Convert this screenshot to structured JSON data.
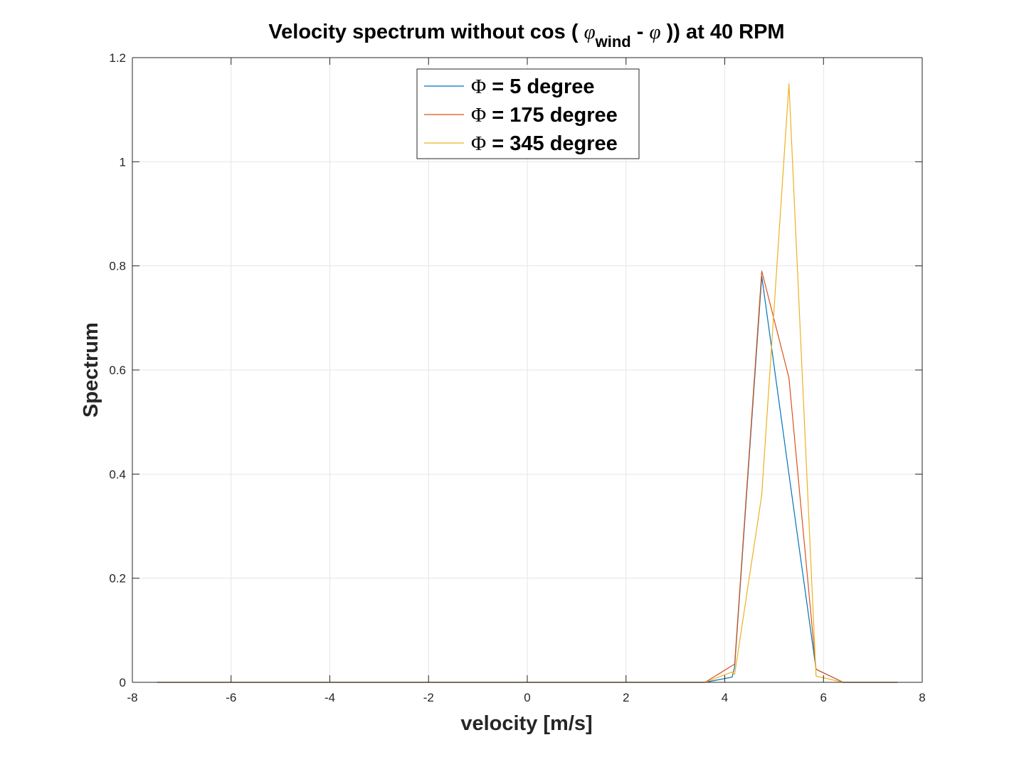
{
  "chart_data": {
    "type": "line",
    "title": {
      "prefix": "Velocity spectrum without cos ( ",
      "phi_symbol": "φ",
      "subscript": "wind",
      "middle": " - ",
      "suffix": " )) at 40 RPM"
    },
    "xlabel": "velocity [m/s]",
    "ylabel": "Spectrum",
    "xlim": [
      -8,
      8
    ],
    "ylim": [
      0,
      1.2
    ],
    "xticks": [
      -8,
      -6,
      -4,
      -2,
      0,
      2,
      4,
      6,
      8
    ],
    "yticks": [
      0,
      0.2,
      0.4,
      0.6,
      0.8,
      1,
      1.2
    ],
    "ytick_labels": [
      "0",
      "0.2",
      "0.4",
      "0.6",
      "0.8",
      "1",
      "1.2"
    ],
    "grid": true,
    "legend_position": "top-center",
    "legend_symbol": "Φ",
    "series": [
      {
        "name": "= 5 degree",
        "color": "#0072BD",
        "points": [
          [
            -7.5,
            0
          ],
          [
            3.6,
            0
          ],
          [
            4.15,
            0.01
          ],
          [
            4.2,
            0.03
          ],
          [
            4.75,
            0.78
          ],
          [
            5.3,
            0.4
          ],
          [
            5.85,
            0.025
          ],
          [
            6.4,
            0
          ],
          [
            7.5,
            0
          ]
        ]
      },
      {
        "name": "= 175 degree",
        "color": "#D95319",
        "points": [
          [
            -7.5,
            0
          ],
          [
            3.6,
            0
          ],
          [
            4.2,
            0.035
          ],
          [
            4.75,
            0.79
          ],
          [
            5.3,
            0.585
          ],
          [
            5.85,
            0.025
          ],
          [
            6.4,
            0
          ],
          [
            7.5,
            0
          ]
        ]
      },
      {
        "name": "= 345 degree",
        "color": "#EDB120",
        "points": [
          [
            -7.5,
            0
          ],
          [
            3.6,
            0
          ],
          [
            4.15,
            0.02
          ],
          [
            4.2,
            0.015
          ],
          [
            4.75,
            0.36
          ],
          [
            5.3,
            1.15
          ],
          [
            5.85,
            0.012
          ],
          [
            6.4,
            0
          ],
          [
            7.5,
            0
          ]
        ]
      }
    ]
  }
}
